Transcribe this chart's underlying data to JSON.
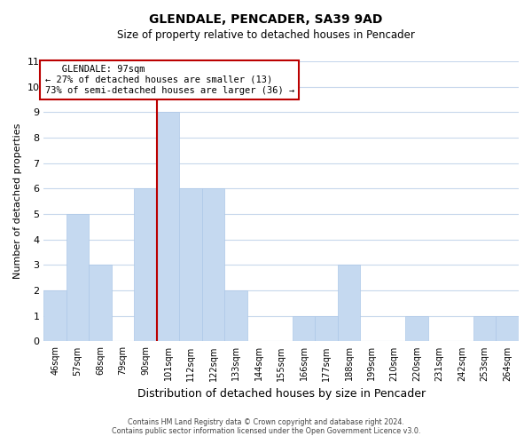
{
  "title": "GLENDALE, PENCADER, SA39 9AD",
  "subtitle": "Size of property relative to detached houses in Pencader",
  "xlabel": "Distribution of detached houses by size in Pencader",
  "ylabel": "Number of detached properties",
  "bar_color": "#c5d9f0",
  "bar_edge_color": "#adc8e8",
  "bin_labels": [
    "46sqm",
    "57sqm",
    "68sqm",
    "79sqm",
    "90sqm",
    "101sqm",
    "112sqm",
    "122sqm",
    "133sqm",
    "144sqm",
    "155sqm",
    "166sqm",
    "177sqm",
    "188sqm",
    "199sqm",
    "210sqm",
    "220sqm",
    "231sqm",
    "242sqm",
    "253sqm",
    "264sqm"
  ],
  "bin_values": [
    2,
    5,
    3,
    0,
    6,
    9,
    6,
    6,
    2,
    0,
    0,
    1,
    1,
    3,
    0,
    0,
    1,
    0,
    0,
    1,
    1
  ],
  "ylim": [
    0,
    11
  ],
  "yticks": [
    0,
    1,
    2,
    3,
    4,
    5,
    6,
    7,
    8,
    9,
    10,
    11
  ],
  "glendale_line_bin": 5,
  "annotation_title": "GLENDALE: 97sqm",
  "annotation_line1": "← 27% of detached houses are smaller (13)",
  "annotation_line2": "73% of semi-detached houses are larger (36) →",
  "annotation_box_color": "#ffffff",
  "annotation_box_edge_color": "#bb0000",
  "glendale_line_color": "#bb0000",
  "grid_color": "#c8d8ec",
  "footnote1": "Contains HM Land Registry data © Crown copyright and database right 2024.",
  "footnote2": "Contains public sector information licensed under the Open Government Licence v3.0."
}
